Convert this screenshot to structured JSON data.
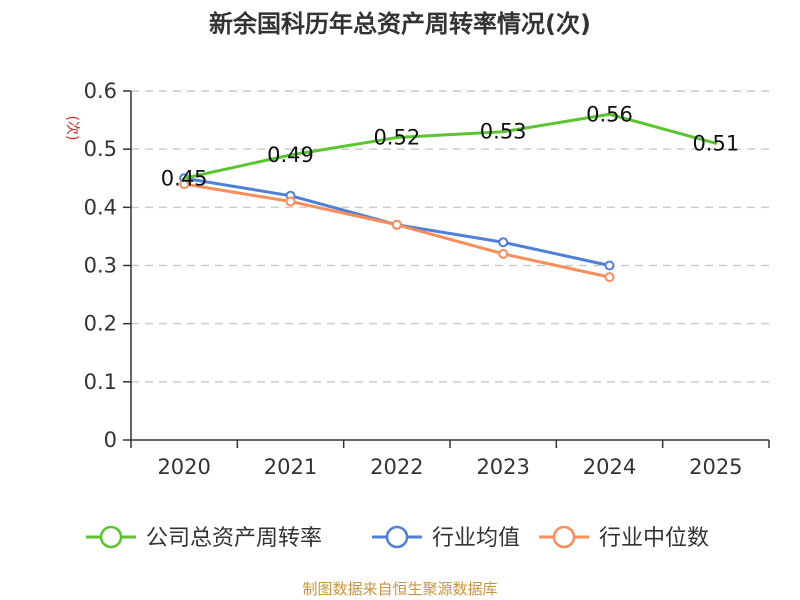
{
  "chart_data": {
    "type": "line",
    "title": "新余国科历年总资产周转率情况(次)",
    "ylabel": "(次)",
    "xlabel": "",
    "ylim": [
      0,
      0.6
    ],
    "yticks": [
      "0",
      "0.1",
      "0.2",
      "0.3",
      "0.4",
      "0.5",
      "0.6"
    ],
    "ytick_values": [
      0,
      0.1,
      0.2,
      0.3,
      0.4,
      0.5,
      0.6
    ],
    "categories": [
      "2020",
      "2021",
      "2022",
      "2023",
      "2024",
      "2025"
    ],
    "grid": true,
    "legend_position": "bottom",
    "series": [
      {
        "name": "公司总资产周转率",
        "color": "#5ac52f",
        "values": [
          0.45,
          0.49,
          0.52,
          0.53,
          0.56,
          0.51
        ],
        "labels": [
          "0.45",
          "0.49",
          "0.52",
          "0.53",
          "0.56",
          "0.51"
        ]
      },
      {
        "name": "行业均值",
        "color": "#4e7fd9",
        "values": [
          0.45,
          0.42,
          0.37,
          0.34,
          0.3,
          null
        ]
      },
      {
        "name": "行业中位数",
        "color": "#f98e5a",
        "values": [
          0.44,
          0.41,
          0.37,
          0.32,
          0.28,
          null
        ]
      }
    ],
    "source": "制图数据来自恒生聚源数据库"
  }
}
